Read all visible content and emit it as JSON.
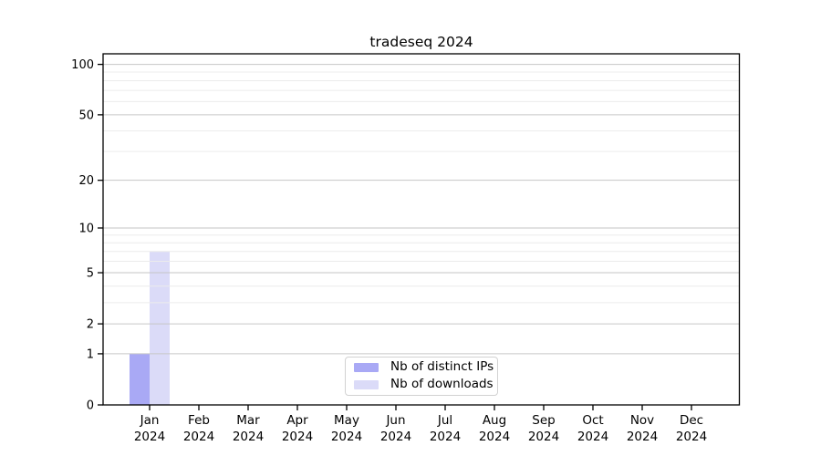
{
  "figure": {
    "background": "#ffffff"
  },
  "chart_data": {
    "type": "bar",
    "title": "tradeseq 2024",
    "categories": [
      "Jan",
      "Feb",
      "Mar",
      "Apr",
      "May",
      "Jun",
      "Jul",
      "Aug",
      "Sep",
      "Oct",
      "Nov",
      "Dec"
    ],
    "category_year": "2024",
    "series": [
      {
        "name": "Nb of distinct IPs",
        "color": "#a9a9f5",
        "values": [
          1,
          0,
          0,
          0,
          0,
          0,
          0,
          0,
          0,
          0,
          0,
          0
        ]
      },
      {
        "name": "Nb of downloads",
        "color": "#dbdbf8",
        "values": [
          7,
          0,
          0,
          0,
          0,
          0,
          0,
          0,
          0,
          0,
          0,
          0
        ]
      }
    ],
    "xlabel": "",
    "ylabel": "",
    "yscale": "log1p",
    "ylim": [
      0,
      115
    ],
    "yticks": [
      0,
      1,
      2,
      5,
      10,
      20,
      50,
      100
    ],
    "minor_yticks": [
      3,
      4,
      6,
      7,
      8,
      9,
      30,
      40,
      60,
      70,
      80,
      90
    ],
    "grid": true,
    "legend_position": "bottom-center"
  },
  "colors": {
    "axis": "#000000",
    "grid_major": "#c6c6c6",
    "grid_minor": "#ececec",
    "text": "#000000"
  }
}
